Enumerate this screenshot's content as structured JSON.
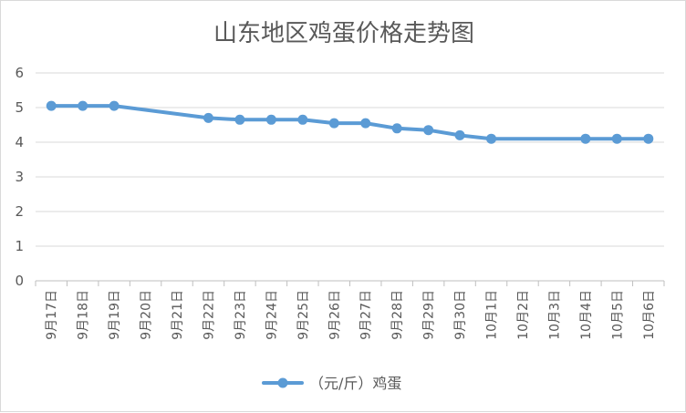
{
  "chart_data": {
    "type": "line",
    "title": "山东地区鸡蛋价格走势图",
    "xlabel": "",
    "ylabel": "",
    "ylim": [
      0,
      6
    ],
    "yticks": [
      "0",
      "1",
      "2",
      "3",
      "4",
      "5",
      "6"
    ],
    "grid": "horizontal",
    "legend_position": "bottom",
    "categories": [
      "9月17日",
      "9月18日",
      "9月19日",
      "9月20日",
      "9月21日",
      "9月22日",
      "9月23日",
      "9月24日",
      "9月25日",
      "9月26日",
      "9月27日",
      "9月28日",
      "9月29日",
      "9月30日",
      "10月1日",
      "10月2日",
      "10月3日",
      "10月4日",
      "10月5日",
      "10月6日"
    ],
    "series": [
      {
        "name": "（元/斤）鸡蛋",
        "color": "#5b9bd5",
        "values": [
          5.05,
          5.05,
          5.05,
          null,
          null,
          4.7,
          4.65,
          4.65,
          4.65,
          4.55,
          4.55,
          4.4,
          4.35,
          4.2,
          4.1,
          null,
          null,
          4.1,
          4.1,
          4.1
        ]
      }
    ]
  }
}
